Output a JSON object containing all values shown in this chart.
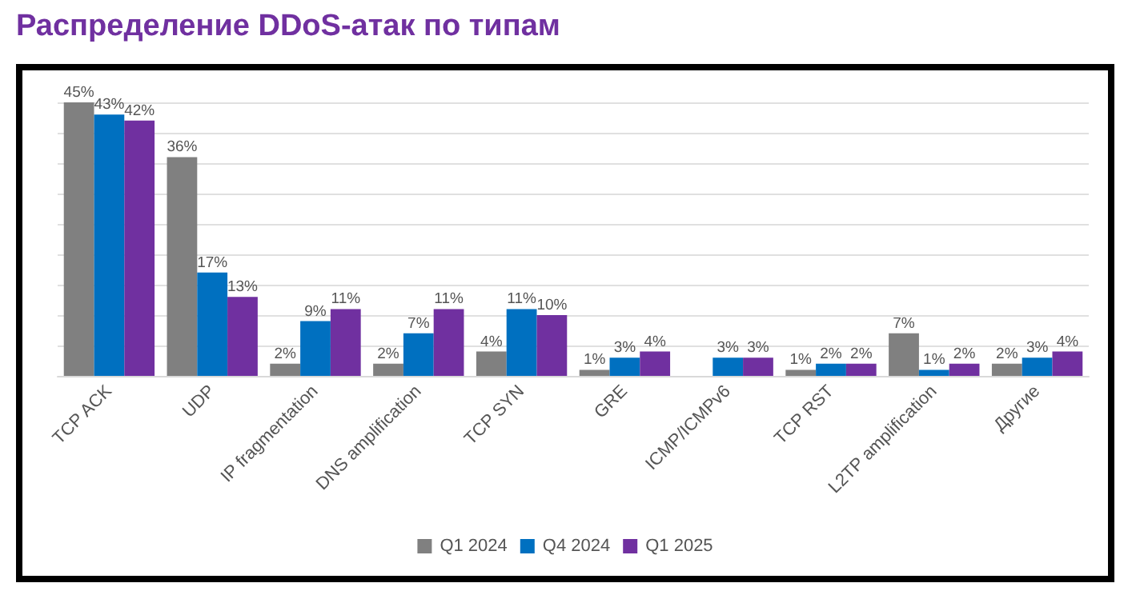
{
  "chart_data": {
    "type": "bar",
    "title": "Распределение DDoS-атак по типам",
    "categories": [
      "TCP ACK",
      "UDP",
      "IP fragmentation",
      "DNS amplification",
      "TCP SYN",
      "GRE",
      "ICMP/ICMPv6",
      "TCP RST",
      "L2TP amplification",
      "Другие"
    ],
    "series": [
      {
        "name": "Q1 2024",
        "color": "#808080",
        "values": [
          45,
          36,
          2,
          2,
          4,
          1,
          null,
          1,
          7,
          2
        ],
        "value_labels": [
          "45%",
          "36%",
          "2%",
          "2%",
          "4%",
          "1%",
          null,
          "1%",
          "7%",
          "2%"
        ]
      },
      {
        "name": "Q4 2024",
        "color": "#0070c0",
        "values": [
          43,
          17,
          9,
          7,
          11,
          3,
          3,
          2,
          1,
          3
        ],
        "value_labels": [
          "43%",
          "17%",
          "9%",
          "7%",
          "11%",
          "3%",
          "3%",
          "2%",
          "1%",
          "3%"
        ]
      },
      {
        "name": "Q1 2025",
        "color": "#7030a0",
        "values": [
          42,
          13,
          11,
          11,
          10,
          4,
          3,
          2,
          2,
          4
        ],
        "value_labels": [
          "42%",
          "13%",
          "11%",
          "11%",
          "10%",
          "4%",
          "3%",
          "2%",
          "2%",
          "4%"
        ]
      }
    ],
    "tick_labels": "x",
    "grid": "y",
    "legend": "bottom"
  }
}
